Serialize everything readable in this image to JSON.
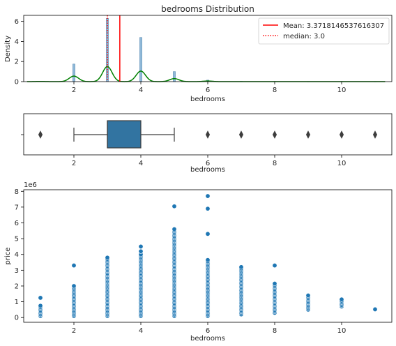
{
  "chart_data": [
    {
      "type": "histogram",
      "title": "bedrooms Distribution",
      "xlabel": "bedrooms",
      "ylabel": "Density",
      "xlim": [
        0.5,
        11.5
      ],
      "ylim": [
        0,
        6.6
      ],
      "xticks": [
        2,
        4,
        6,
        8,
        10
      ],
      "yticks": [
        0,
        2,
        4,
        6
      ],
      "hist_color": "#8fb8d8",
      "hist_edge": "#4f83ad",
      "kde_color": "#008000",
      "bars": [
        {
          "x": 1,
          "density": 0.04
        },
        {
          "x": 2,
          "density": 1.75
        },
        {
          "x": 3,
          "density": 6.3
        },
        {
          "x": 4,
          "density": 4.4
        },
        {
          "x": 5,
          "density": 1.0
        },
        {
          "x": 6,
          "density": 0.15
        },
        {
          "x": 7,
          "density": 0.03
        },
        {
          "x": 8,
          "density": 0.02
        },
        {
          "x": 9,
          "density": 0.01
        },
        {
          "x": 10,
          "density": 0.01
        },
        {
          "x": 11,
          "density": 0.01
        }
      ],
      "kde": {
        "x_range": [
          0.6,
          11.3
        ],
        "peaks": [
          {
            "x": 1,
            "height": 0.02
          },
          {
            "x": 2,
            "height": 0.55
          },
          {
            "x": 3,
            "height": 1.5
          },
          {
            "x": 4,
            "height": 1.05
          },
          {
            "x": 5,
            "height": 0.3
          },
          {
            "x": 6,
            "height": 0.06
          }
        ]
      },
      "lines": [
        {
          "label": "Mean: 3.3718146537616307",
          "x": 3.3718146537616307,
          "color": "#ff0000",
          "style": "solid"
        },
        {
          "label": "median: 3.0",
          "x": 3.0,
          "color": "#ff0000",
          "style": "dotted"
        }
      ],
      "legend_position": "top-right"
    },
    {
      "type": "boxplot",
      "xlabel": "bedrooms",
      "xlim": [
        0.5,
        11.5
      ],
      "xticks": [
        2,
        4,
        6,
        8,
        10
      ],
      "q1": 3,
      "median": 3,
      "q3": 4,
      "whisker_low": 2,
      "whisker_high": 5,
      "outliers": [
        1,
        6,
        7,
        8,
        9,
        10,
        11
      ],
      "box_color": "#3274a1"
    },
    {
      "type": "scatter",
      "xlabel": "bedrooms",
      "ylabel": "price",
      "y_scale_label": "1e6",
      "xlim": [
        0.5,
        11.5
      ],
      "ylim": [
        -0.3,
        8.1
      ],
      "xticks": [
        2,
        4,
        6,
        8,
        10
      ],
      "yticks": [
        0,
        1,
        2,
        3,
        4,
        5,
        6,
        7,
        8
      ],
      "point_color": "#1f77b4",
      "groups": [
        {
          "x": 1,
          "min": 0.1,
          "max": 0.75,
          "outliers": [
            1.25
          ]
        },
        {
          "x": 2,
          "min": 0.1,
          "max": 2.0,
          "outliers": [
            3.3
          ]
        },
        {
          "x": 3,
          "min": 0.1,
          "max": 3.8,
          "outliers": []
        },
        {
          "x": 4,
          "min": 0.1,
          "max": 4.0,
          "outliers": [
            4.2,
            4.5
          ]
        },
        {
          "x": 5,
          "min": 0.1,
          "max": 5.6,
          "outliers": [
            7.05
          ]
        },
        {
          "x": 6,
          "min": 0.1,
          "max": 3.65,
          "outliers": [
            5.3,
            6.9,
            7.7
          ]
        },
        {
          "x": 7,
          "min": 0.2,
          "max": 3.2,
          "outliers": []
        },
        {
          "x": 8,
          "min": 0.3,
          "max": 2.15,
          "outliers": [
            3.3
          ]
        },
        {
          "x": 9,
          "min": 0.5,
          "max": 1.4,
          "outliers": []
        },
        {
          "x": 10,
          "min": 0.7,
          "max": 1.15,
          "outliers": []
        },
        {
          "x": 11,
          "min": 0.52,
          "max": 0.52,
          "outliers": []
        }
      ]
    }
  ]
}
